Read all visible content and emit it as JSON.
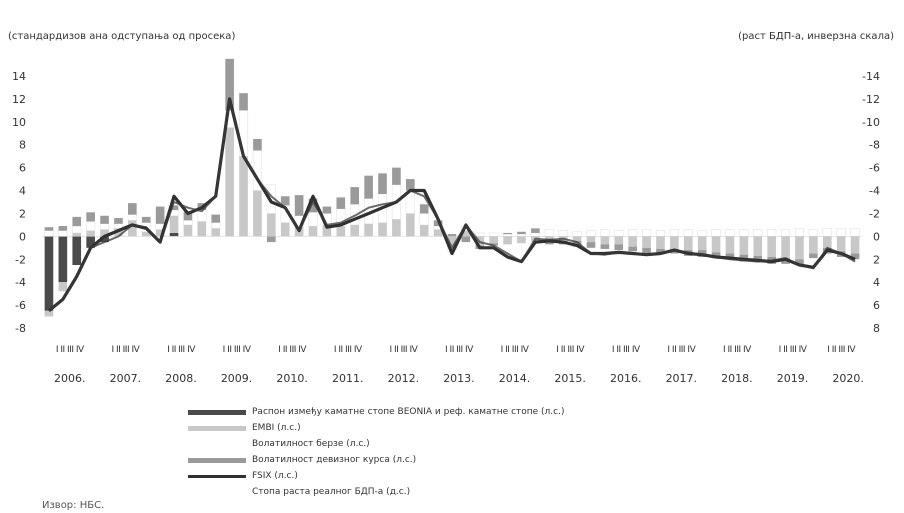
{
  "chart_data": {
    "type": "bar",
    "left_axis_note": "(стандардизов ана одступања од просека)",
    "right_axis_note": "(раст БДП-а, инверзна скала)",
    "ylim_left": [
      -8,
      14
    ],
    "ylim_right": [
      8,
      -14
    ],
    "yticks_left": [
      "14",
      "12",
      "10",
      "8",
      "6",
      "4",
      "2",
      "0",
      "-2",
      "-4",
      "-6",
      "-8"
    ],
    "yticks_right": [
      "-14",
      "-12",
      "-10",
      "-8",
      "-6",
      "-4",
      "-2",
      "0",
      "2",
      "4",
      "6",
      "8"
    ],
    "quarter_label": "I II III IV",
    "years": [
      "2006.",
      "2007.",
      "2008.",
      "2009.",
      "2010.",
      "2011.",
      "2012.",
      "2013.",
      "2014.",
      "2015.",
      "2016.",
      "2017.",
      "2018.",
      "2019.",
      "2020."
    ],
    "quarters_in_last_year": 3,
    "series": [
      {
        "name": "Распон између каматне стопе BEONIA и реф. каматне стопе (л.с.)",
        "kind": "bar",
        "color": "#4a4a4a",
        "values": [
          -6.5,
          -4,
          -2.5,
          -1,
          -0.5,
          0,
          0,
          0,
          0,
          0.3,
          0,
          0,
          0,
          0,
          0,
          0,
          0,
          0,
          0,
          0,
          0,
          0,
          0,
          0,
          0,
          0,
          0,
          0,
          0,
          0,
          0,
          0,
          0,
          0,
          0,
          0,
          0,
          0,
          0,
          0,
          0,
          0,
          0,
          0,
          0,
          0,
          0,
          0,
          0,
          0,
          0,
          0,
          0,
          0,
          0,
          0,
          0,
          0,
          0
        ]
      },
      {
        "name": "EMBI (л.с.)",
        "kind": "bar",
        "color": "#c8c8c8",
        "values": [
          -0.5,
          -0.8,
          0.3,
          0.5,
          0.6,
          0.7,
          1.4,
          0.4,
          0.6,
          1.5,
          1.0,
          1.3,
          0.7,
          9.5,
          7.0,
          4.0,
          2.0,
          1.2,
          0.8,
          0.9,
          1.0,
          0.9,
          1.0,
          1.1,
          1.2,
          1.5,
          2.0,
          1.0,
          0.6,
          -0.8,
          0.5,
          -0.8,
          -0.6,
          -0.7,
          -0.6,
          -0.5,
          -0.5,
          -0.4,
          -0.4,
          -0.5,
          -0.7,
          -0.7,
          -0.9,
          -1.0,
          -1.1,
          -1.1,
          -1.2,
          -1.2,
          -1.4,
          -1.5,
          -1.6,
          -1.7,
          -1.8,
          -1.9,
          -2.0,
          -1.5,
          -1.0,
          -1.3,
          -1.5
        ]
      },
      {
        "name": "Волатилност берзе (л.с.)",
        "kind": "bar",
        "color": "#ffffff",
        "values": [
          0.5,
          0.5,
          0.6,
          0.8,
          0.5,
          0.4,
          0.5,
          0.8,
          0.5,
          0.5,
          0.4,
          1.0,
          0.5,
          1.5,
          4.0,
          3.5,
          2.5,
          1.5,
          1.0,
          1.2,
          1.0,
          1.5,
          1.8,
          2.2,
          2.5,
          3.0,
          2.0,
          1.0,
          0.3,
          -0.5,
          0.4,
          0.3,
          0.3,
          0.2,
          0.2,
          0.3,
          0.6,
          0.5,
          0.4,
          0.5,
          0.6,
          0.5,
          0.6,
          0.6,
          0.5,
          0.6,
          0.6,
          0.5,
          0.6,
          0.6,
          0.6,
          0.6,
          0.6,
          0.6,
          0.7,
          0.6,
          0.7,
          0.7,
          0.7
        ]
      },
      {
        "name": "Волатилност девизног курса (л.с.)",
        "kind": "bar",
        "color": "#9a9a9a",
        "values": [
          0.3,
          0.4,
          0.8,
          0.8,
          0.7,
          0.5,
          1.0,
          0.5,
          1.5,
          0.4,
          0.8,
          0.6,
          0.7,
          4.5,
          1.5,
          1.0,
          -0.5,
          0.8,
          1.8,
          1.2,
          0.6,
          1.0,
          1.5,
          2.0,
          1.8,
          1.5,
          1.0,
          0.8,
          0.5,
          0.2,
          -0.5,
          -0.3,
          -0.2,
          0.1,
          0.2,
          0.4,
          -0.2,
          -0.3,
          -0.5,
          -0.5,
          -0.4,
          -0.5,
          -0.4,
          -0.5,
          -0.3,
          -0.4,
          -0.5,
          -0.6,
          -0.5,
          -0.5,
          -0.6,
          -0.5,
          -0.6,
          -0.5,
          -0.5,
          -0.4,
          -0.5,
          -0.5,
          -0.5
        ]
      },
      {
        "name": "FSIX (л.с.)",
        "kind": "line",
        "color": "#303030",
        "values": [
          -6.5,
          -5.5,
          -3.5,
          -1,
          0,
          0.5,
          1,
          0.7,
          -0.5,
          3.5,
          2.0,
          2.5,
          3.5,
          12,
          7,
          5,
          3,
          2.5,
          0.5,
          3.5,
          0.8,
          1.0,
          1.5,
          2.0,
          2.5,
          3.0,
          4.0,
          4.0,
          1.5,
          -1.5,
          1.0,
          -1.0,
          -1.0,
          -1.8,
          -2.2,
          -0.5,
          -0.4,
          -0.5,
          -0.8,
          -1.5,
          -1.5,
          -1.4,
          -1.5,
          -1.6,
          -1.5,
          -1.2,
          -1.5,
          -1.6,
          -1.8,
          -1.9,
          -2.0,
          -2.1,
          -2.2,
          -2.0,
          -2.5,
          -2.7,
          -1.2,
          -1.5,
          -2.0
        ]
      },
      {
        "name": "Стопа раста реалног БДП-а (д.с.)",
        "kind": "line",
        "color": "#3a3a3a",
        "values": [
          6.5,
          5.5,
          3.5,
          1.0,
          0.5,
          0.0,
          -1.0,
          -0.8,
          0.5,
          -3.0,
          -2.5,
          -2.2,
          -3.5,
          -12.0,
          -7.0,
          -5.0,
          -3.5,
          -2.5,
          -0.5,
          -3.0,
          -1.0,
          -1.2,
          -1.8,
          -2.5,
          -2.8,
          -3.0,
          -4.0,
          -3.5,
          -1.5,
          1.0,
          -1.0,
          0.5,
          0.8,
          1.5,
          2.2,
          0.2,
          0.3,
          0.2,
          0.5,
          1.5,
          1.6,
          1.4,
          1.5,
          1.6,
          1.5,
          1.2,
          1.4,
          1.6,
          1.8,
          2.0,
          2.1,
          2.2,
          2.1,
          1.9,
          2.5,
          2.8,
          1.0,
          1.5,
          2.2
        ]
      }
    ]
  },
  "source_label": "Извор: НБС."
}
